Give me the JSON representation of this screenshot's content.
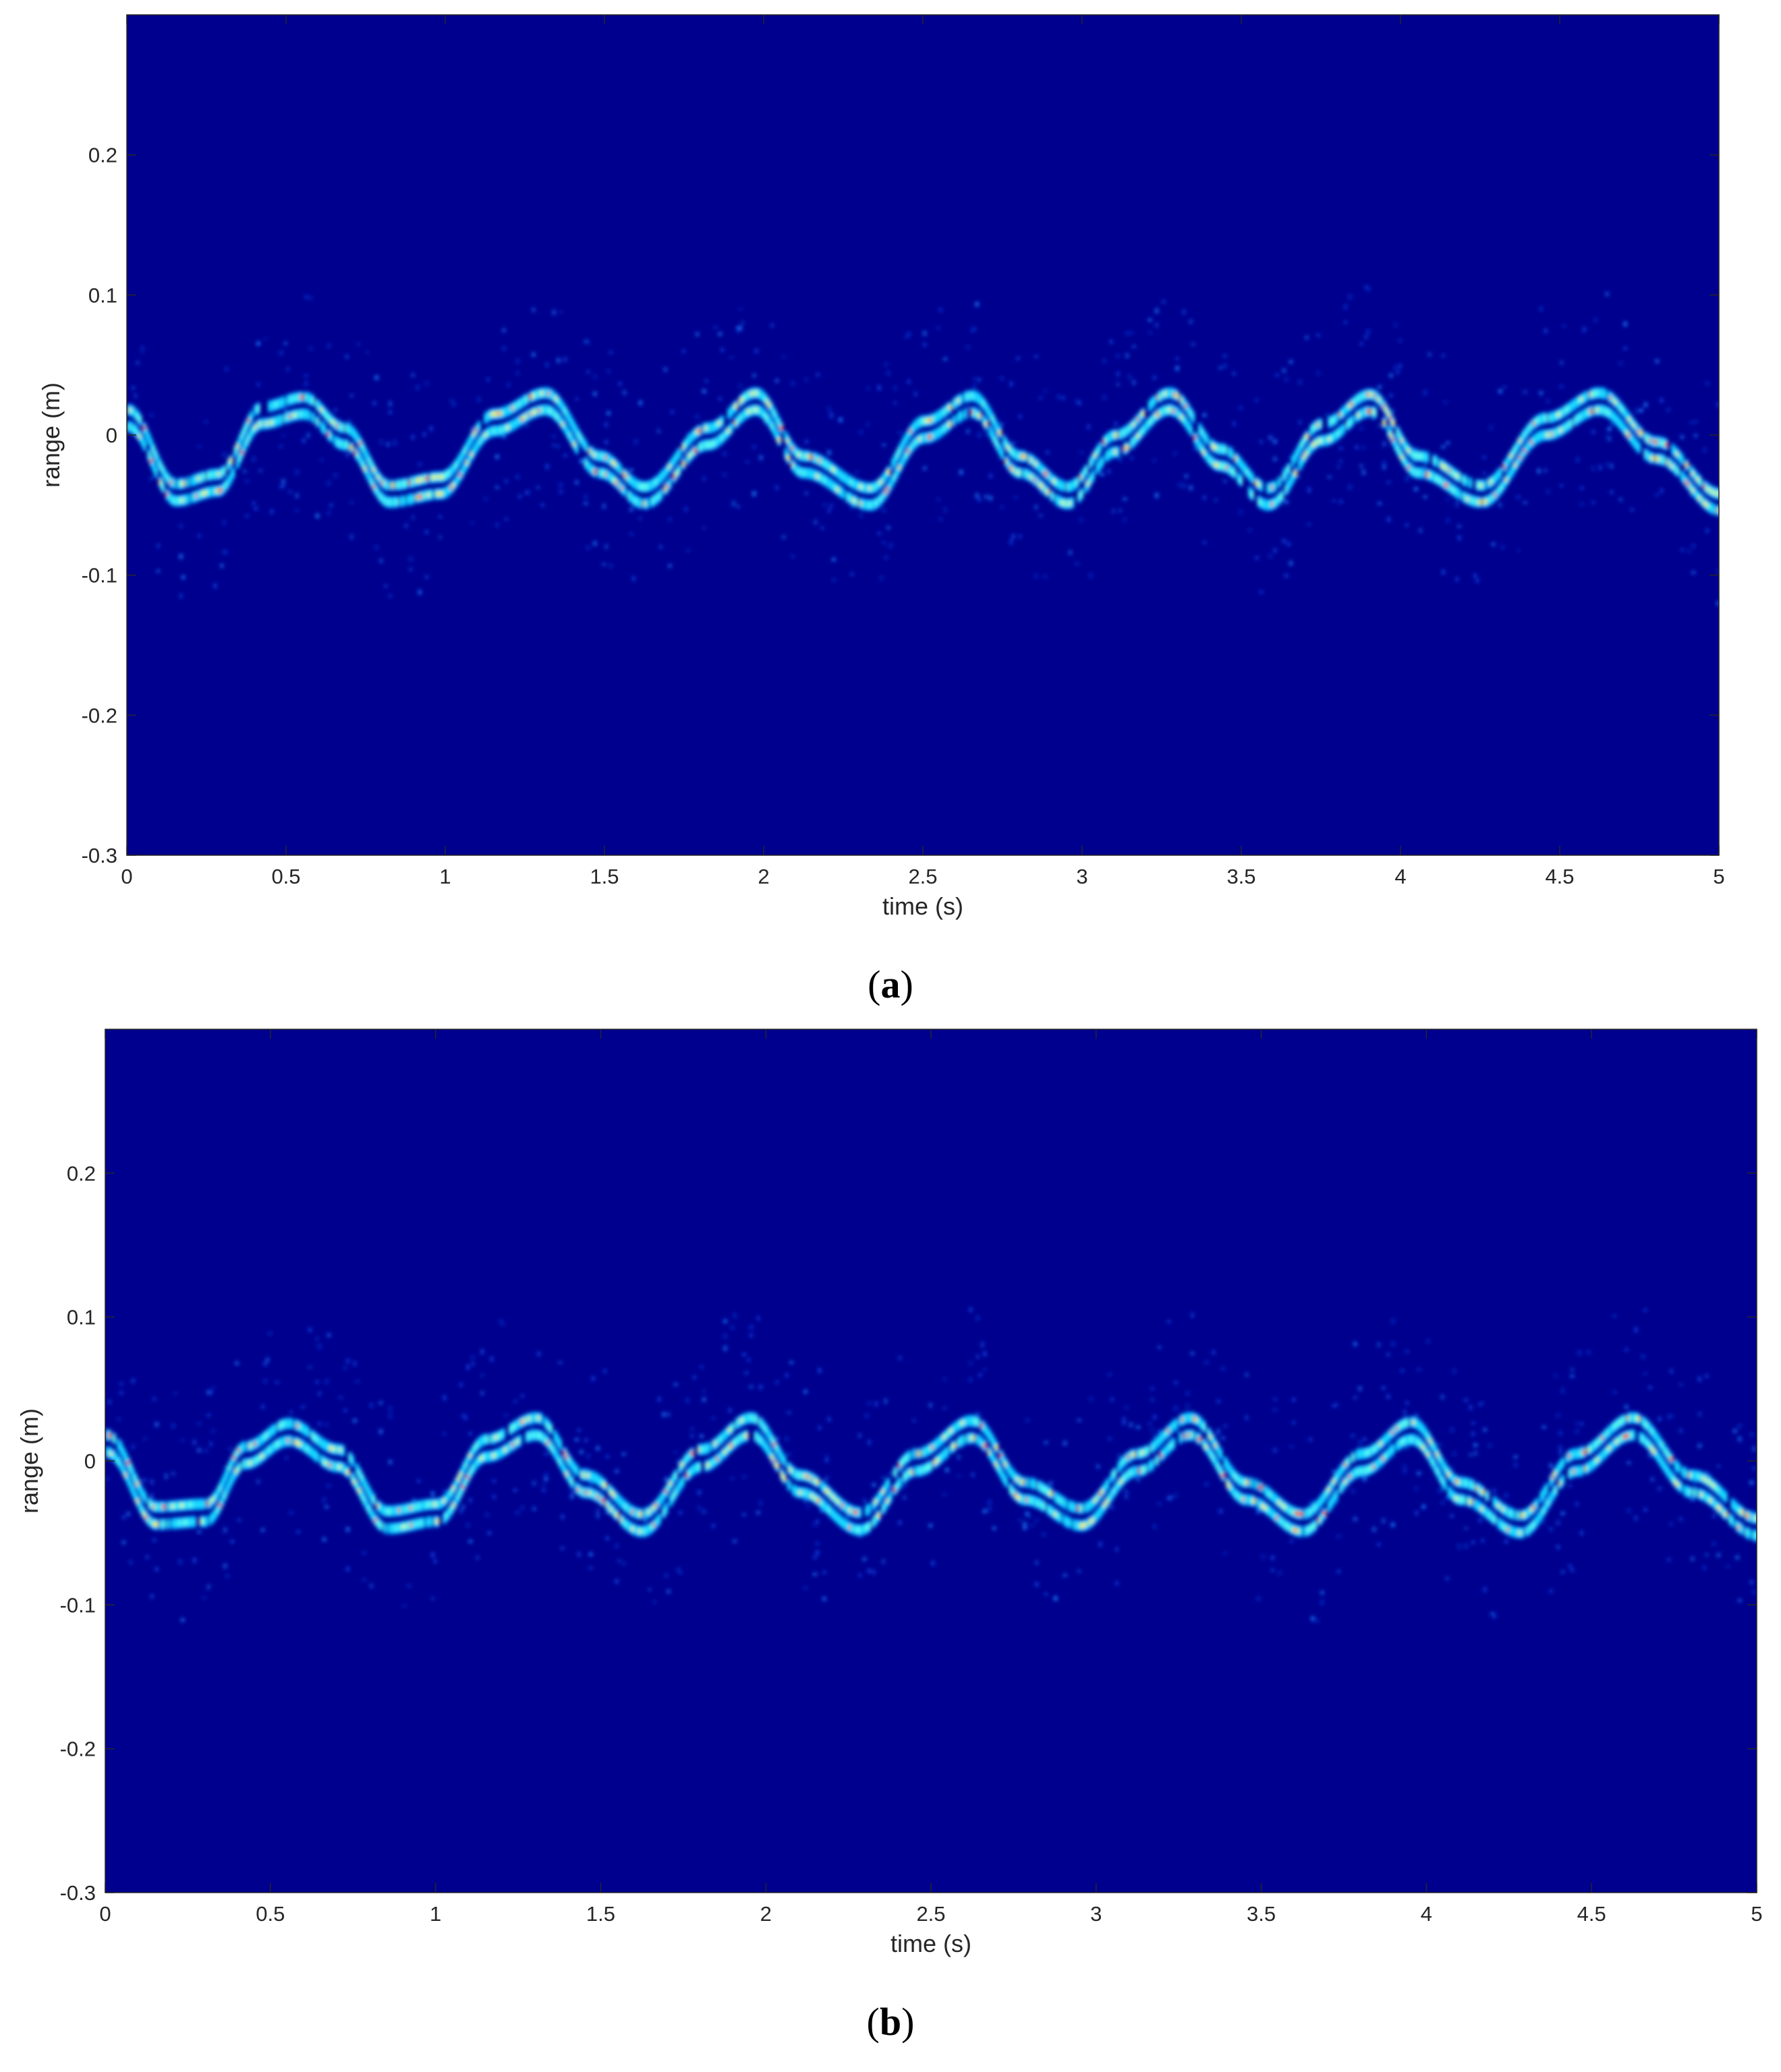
{
  "chart_data": [
    {
      "type": "heatmap",
      "panel_label": "a",
      "xlabel": "time (s)",
      "ylabel": "range (m)",
      "xlim": [
        0,
        5
      ],
      "ylim": [
        -0.3,
        0.3
      ],
      "x_ticks": [
        "0",
        "0.5",
        "1",
        "1.5",
        "2",
        "2.5",
        "3",
        "3.5",
        "4",
        "4.5",
        "5"
      ],
      "y_ticks": [
        "-0.3",
        "-0.2",
        "-0.1",
        "0",
        "0.1",
        "0.2"
      ],
      "colormap": "jet",
      "background_color": "#00008f",
      "motion_trace": {
        "x": [
          0.0,
          0.15,
          0.28,
          0.42,
          0.55,
          0.68,
          0.82,
          0.98,
          1.15,
          1.31,
          1.48,
          1.62,
          1.82,
          1.97,
          2.12,
          2.33,
          2.5,
          2.65,
          2.8,
          2.95,
          3.1,
          3.27,
          3.43,
          3.58,
          3.75,
          3.9,
          4.05,
          4.25,
          4.45,
          4.62,
          4.8,
          5.0
        ],
        "y": [
          0.018,
          -0.035,
          -0.028,
          0.02,
          0.027,
          0.005,
          -0.036,
          -0.03,
          0.015,
          0.03,
          -0.015,
          -0.037,
          0.005,
          0.03,
          -0.015,
          -0.038,
          0.01,
          0.028,
          -0.015,
          -0.037,
          0.0,
          0.03,
          -0.01,
          -0.038,
          0.008,
          0.029,
          -0.015,
          -0.036,
          0.012,
          0.03,
          -0.005,
          -0.042
        ]
      }
    },
    {
      "type": "heatmap",
      "panel_label": "b",
      "xlabel": "time (s)",
      "ylabel": "range (m)",
      "xlim": [
        0,
        5
      ],
      "ylim": [
        -0.3,
        0.3
      ],
      "x_ticks": [
        "0",
        "0.5",
        "1",
        "1.5",
        "2",
        "2.5",
        "3",
        "3.5",
        "4",
        "4.5",
        "5"
      ],
      "y_ticks": [
        "-0.3",
        "-0.2",
        "-0.1",
        "0",
        "0.1",
        "0.2"
      ],
      "colormap": "jet",
      "background_color": "#00008f",
      "motion_trace": {
        "x": [
          0.0,
          0.15,
          0.3,
          0.42,
          0.55,
          0.7,
          0.85,
          1.0,
          1.15,
          1.3,
          1.45,
          1.62,
          1.8,
          1.95,
          2.1,
          2.28,
          2.45,
          2.62,
          2.78,
          2.95,
          3.12,
          3.28,
          3.45,
          3.62,
          3.8,
          3.95,
          4.1,
          4.28,
          4.45,
          4.62,
          4.8,
          5.0
        ],
        "y": [
          0.018,
          -0.032,
          -0.03,
          0.01,
          0.026,
          0.008,
          -0.035,
          -0.03,
          0.015,
          0.03,
          -0.01,
          -0.037,
          0.008,
          0.03,
          -0.01,
          -0.036,
          0.005,
          0.028,
          -0.015,
          -0.033,
          0.005,
          0.03,
          -0.015,
          -0.037,
          0.005,
          0.027,
          -0.015,
          -0.038,
          0.005,
          0.03,
          -0.01,
          -0.04
        ]
      }
    }
  ]
}
